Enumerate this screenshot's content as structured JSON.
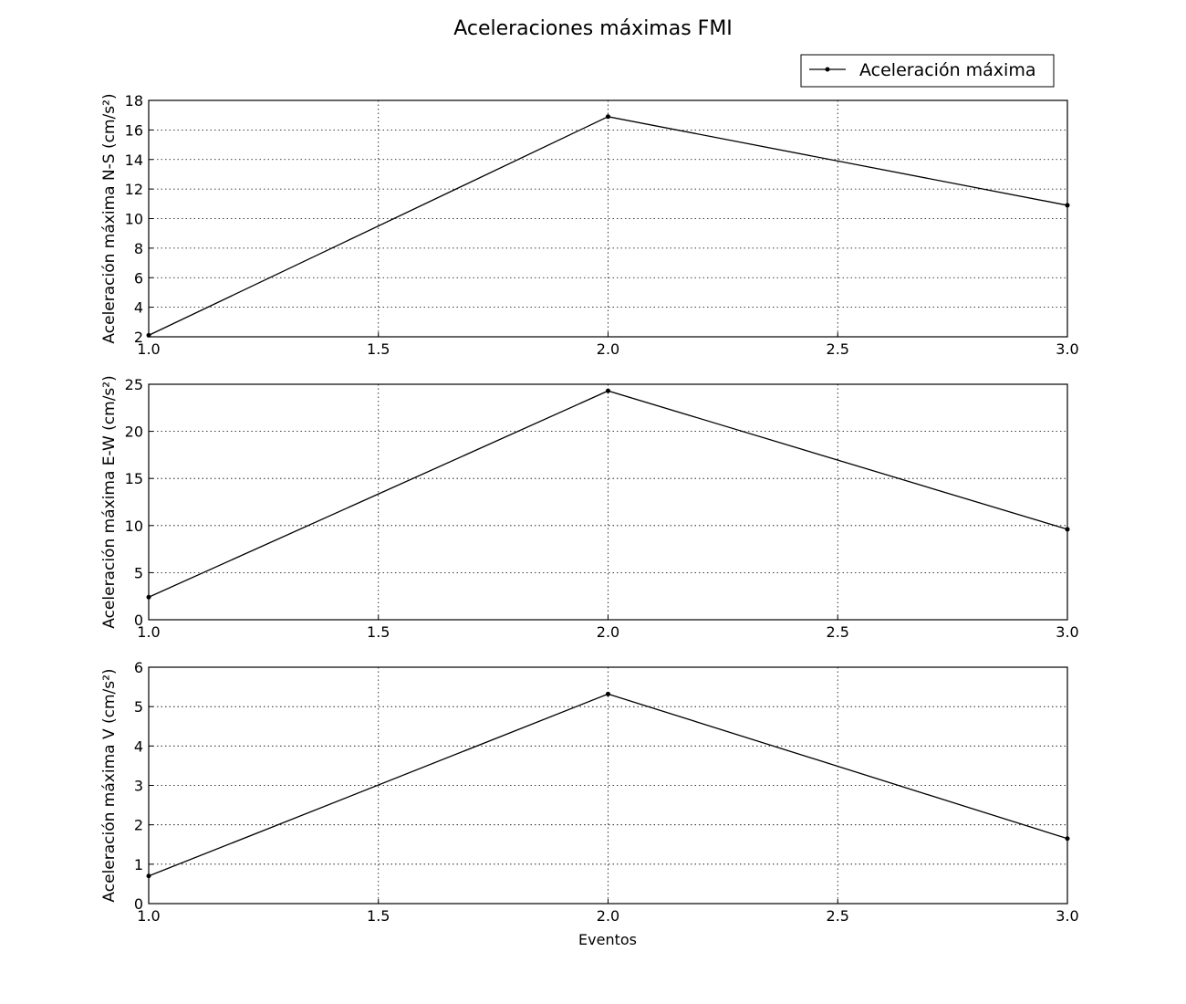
{
  "figure": {
    "title": "Aceleraciones máximas FMI",
    "legend": {
      "label": "Aceleración máxima",
      "placement": "top-right"
    },
    "line_color": "#000000"
  },
  "chart_data": [
    {
      "type": "line",
      "ylabel": "Aceleración máxima N-S (cm/s²)",
      "xlabel": "",
      "x": [
        1.0,
        2.0,
        3.0
      ],
      "series": [
        {
          "name": "Aceleración máxima",
          "values": [
            2.1,
            16.9,
            10.9
          ]
        }
      ],
      "xlim": [
        1.0,
        3.0
      ],
      "ylim": [
        2,
        18
      ],
      "xticks": [
        "1.0",
        "1.5",
        "2.0",
        "2.5",
        "3.0"
      ],
      "yticks": [
        "2",
        "4",
        "6",
        "8",
        "10",
        "12",
        "14",
        "16",
        "18"
      ],
      "grid": true
    },
    {
      "type": "line",
      "ylabel": "Aceleración máxima E-W (cm/s²)",
      "xlabel": "",
      "x": [
        1.0,
        2.0,
        3.0
      ],
      "series": [
        {
          "name": "Aceleración máxima",
          "values": [
            2.4,
            24.3,
            9.6
          ]
        }
      ],
      "xlim": [
        1.0,
        3.0
      ],
      "ylim": [
        0,
        25
      ],
      "xticks": [
        "1.0",
        "1.5",
        "2.0",
        "2.5",
        "3.0"
      ],
      "yticks": [
        "0",
        "5",
        "10",
        "15",
        "20",
        "25"
      ],
      "grid": true
    },
    {
      "type": "line",
      "ylabel": "Aceleración máxima V (cm/s²)",
      "xlabel": "Eventos",
      "x": [
        1.0,
        2.0,
        3.0
      ],
      "series": [
        {
          "name": "Aceleración máxima",
          "values": [
            0.7,
            5.32,
            1.65
          ]
        }
      ],
      "xlim": [
        1.0,
        3.0
      ],
      "ylim": [
        0,
        6
      ],
      "xticks": [
        "1.0",
        "1.5",
        "2.0",
        "2.5",
        "3.0"
      ],
      "yticks": [
        "0",
        "1",
        "2",
        "3",
        "4",
        "5",
        "6"
      ],
      "grid": true
    }
  ]
}
